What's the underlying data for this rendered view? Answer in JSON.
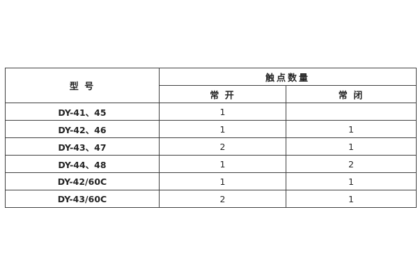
{
  "page": {
    "background": "#ffffff",
    "border_color": "#3f3f3f",
    "text_color": "#242424"
  },
  "table": {
    "header": {
      "model_col": "型 号",
      "contact_group": "触点数量",
      "normally_open": "常 开",
      "normally_closed": "常 闭"
    },
    "rows": [
      {
        "model": "DY-41、45",
        "normally_open": "1",
        "normally_closed": ""
      },
      {
        "model": "DY-42、46",
        "normally_open": "1",
        "normally_closed": "1"
      },
      {
        "model": "DY-43、47",
        "normally_open": "2",
        "normally_closed": "1"
      },
      {
        "model": "DY-44、48",
        "normally_open": "1",
        "normally_closed": "2"
      },
      {
        "model": "DY-42/60C",
        "normally_open": "1",
        "normally_closed": "1"
      },
      {
        "model": "DY-43/60C",
        "normally_open": "2",
        "normally_closed": "1"
      }
    ]
  }
}
